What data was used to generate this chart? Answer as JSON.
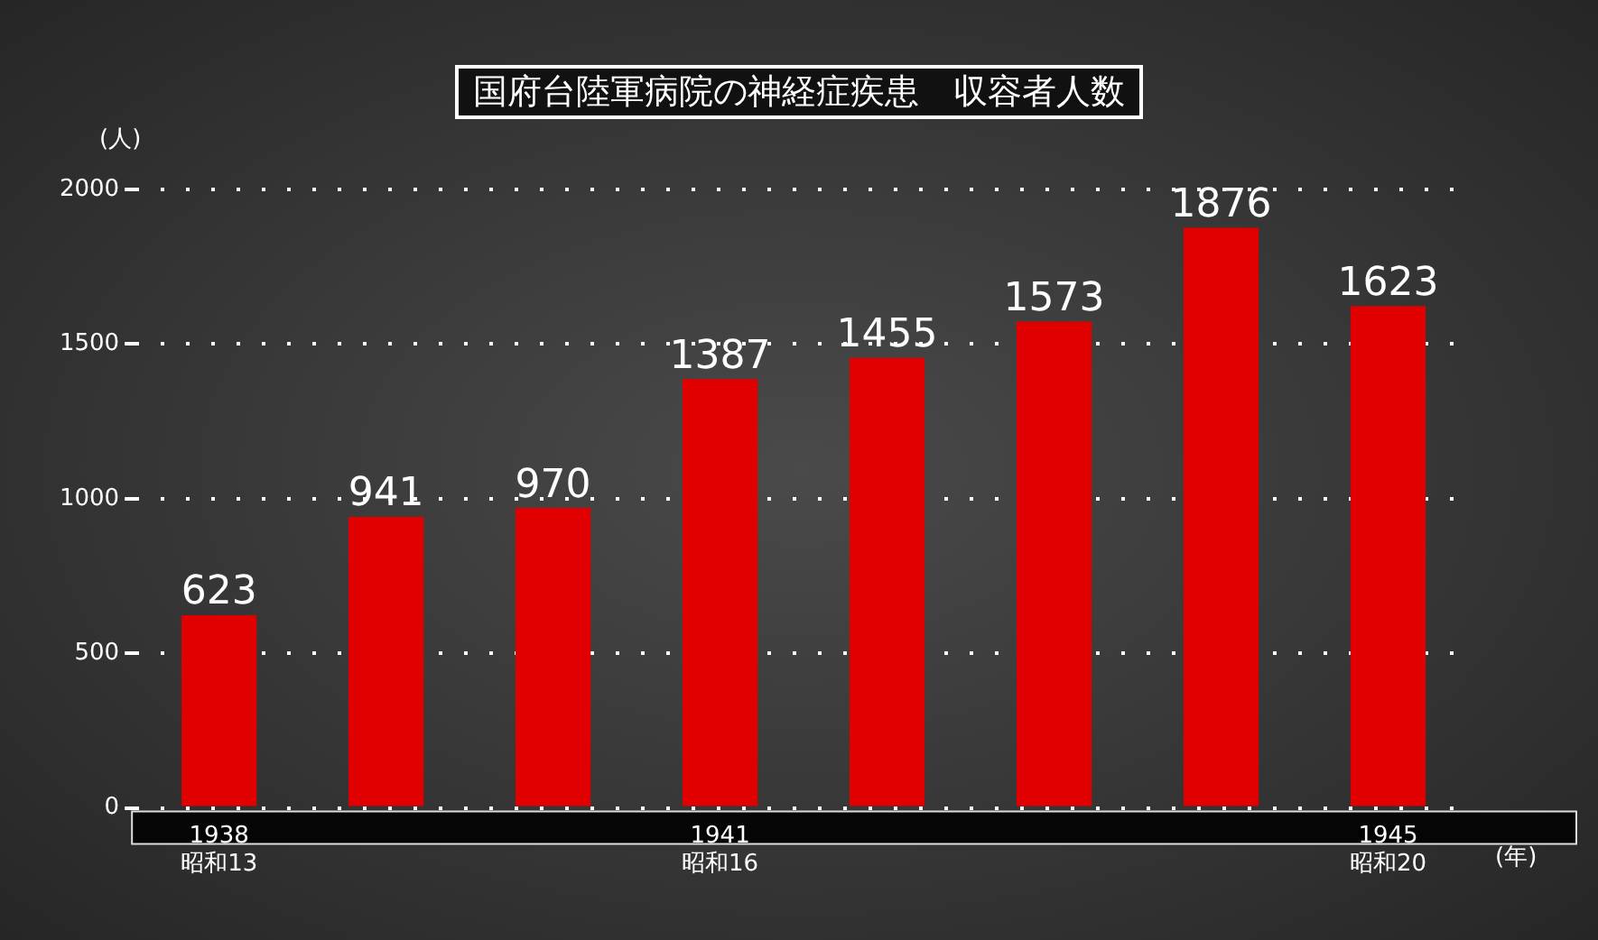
{
  "chart_data": {
    "type": "bar",
    "title": "国府台陸軍病院の神経症疾患　収容者人数",
    "ylabel": "(人)",
    "xlabel": "(年)",
    "categories": [
      "1938\n昭和13",
      null,
      null,
      "1941\n昭和16",
      null,
      null,
      null,
      "1945\n昭和20"
    ],
    "values": [
      623,
      941,
      970,
      1387,
      1455,
      1573,
      1876,
      1623
    ],
    "color": "#e00000",
    "ylim": [
      0,
      2000
    ],
    "yticks": [
      0,
      500,
      1000,
      1500,
      2000
    ],
    "grid": "y",
    "legend": false,
    "data_labels": true
  }
}
